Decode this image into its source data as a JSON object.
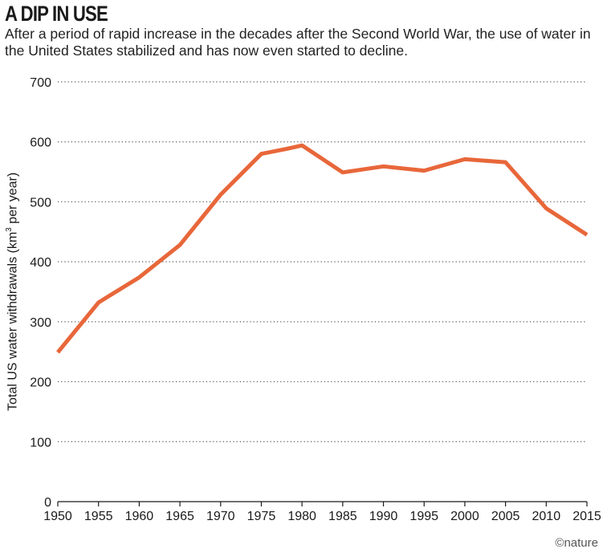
{
  "title": "A DIP IN USE",
  "subtitle": "After a period of rapid increase in the decades after the Second World War, the use of water in the United States stabilized and has now even started to decline.",
  "credit": "©nature",
  "colors": {
    "line": "#e8673a",
    "grid": "#555555",
    "text": "#1a1a1a"
  },
  "chart_data": {
    "type": "line",
    "title": "A DIP IN USE",
    "xlabel": "",
    "ylabel_prefix": "Total US water withdrawals  (km",
    "ylabel_sup": "3",
    "ylabel_suffix": " per year)",
    "xlim": [
      1950,
      2015
    ],
    "ylim": [
      0,
      700
    ],
    "yticks": [
      0,
      100,
      200,
      300,
      400,
      500,
      600,
      700
    ],
    "xticks": [
      1950,
      1955,
      1960,
      1965,
      1970,
      1975,
      1980,
      1985,
      1990,
      1995,
      2000,
      2005,
      2010,
      2015
    ],
    "grid": "horizontal-dotted",
    "series": [
      {
        "name": "Total US water withdrawals",
        "x": [
          1950,
          1955,
          1960,
          1965,
          1970,
          1975,
          1978,
          1980,
          1985,
          1990,
          1995,
          2000,
          2005,
          2010,
          2015
        ],
        "values": [
          249,
          332,
          374,
          428,
          512,
          580,
          588,
          594,
          549,
          559,
          552,
          571,
          566,
          489,
          445
        ]
      }
    ]
  }
}
